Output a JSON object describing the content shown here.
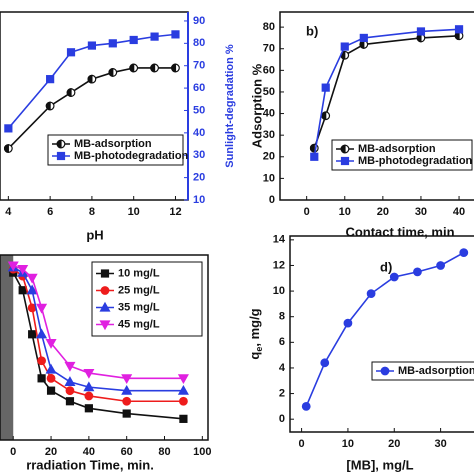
{
  "chart_data": [
    {
      "type": "line",
      "x_label": "pH",
      "y2_label": "Sunlight-degradation %",
      "x": [
        4,
        6,
        7,
        8,
        9,
        10,
        11,
        12
      ],
      "xlim": [
        3.6,
        12.6
      ],
      "xticks": [
        4,
        6,
        8,
        10,
        12
      ],
      "ylim": [
        10,
        94
      ],
      "y2lim": [
        10,
        94
      ],
      "y2ticks": [
        10,
        20,
        30,
        40,
        50,
        60,
        70,
        80,
        90
      ],
      "y2_color": "#2a3de0",
      "series": [
        {
          "name": "MB-adsorption",
          "color": "#111111",
          "marker": "half",
          "values": [
            33,
            52,
            58,
            64,
            67,
            69,
            69,
            69
          ]
        },
        {
          "name": "MB-photodegradation",
          "color": "#2a3de0",
          "marker": "square",
          "axis": "y2",
          "values": [
            42,
            64,
            76,
            79,
            80,
            81.5,
            83,
            84
          ]
        }
      ]
    },
    {
      "type": "line",
      "label": "b)",
      "x_label": "Contact time, min",
      "y_label": "Adsorption %",
      "x": [
        2,
        5,
        10,
        15,
        30,
        40
      ],
      "xlim": [
        -7,
        45.5
      ],
      "xticks": [
        0,
        10,
        20,
        30,
        40
      ],
      "ylim": [
        0,
        87
      ],
      "yticks": [
        0,
        10,
        20,
        30,
        40,
        50,
        60,
        70,
        80
      ],
      "series": [
        {
          "name": "MB-adsorption",
          "color": "#111111",
          "marker": "half",
          "values": [
            24,
            39,
            67,
            72,
            75,
            76
          ]
        },
        {
          "name": "MB-photodegradation",
          "color": "#2a3de0",
          "marker": "square",
          "values": [
            20,
            52,
            71,
            75,
            78,
            79
          ]
        }
      ]
    },
    {
      "type": "line",
      "x_label": "rradiation Time, min.",
      "dark_region": true,
      "x": [
        0,
        5,
        10,
        15,
        20,
        30,
        40,
        60,
        90
      ],
      "xlim": [
        -7,
        103
      ],
      "xticks": [
        0,
        20,
        40,
        60,
        80,
        100
      ],
      "ylim": [
        0,
        1.05
      ],
      "series": [
        {
          "name": "10 mg/L",
          "color": "#111111",
          "marker": "square",
          "values": [
            0.95,
            0.85,
            0.6,
            0.35,
            0.28,
            0.22,
            0.18,
            0.15,
            0.12
          ]
        },
        {
          "name": "25 mg/L",
          "color": "#ee1c1c",
          "marker": "circle",
          "values": [
            0.97,
            0.93,
            0.75,
            0.45,
            0.35,
            0.28,
            0.25,
            0.22,
            0.22
          ]
        },
        {
          "name": "35 mg/L",
          "color": "#2a3de0",
          "marker": "triup",
          "values": [
            0.98,
            0.95,
            0.85,
            0.6,
            0.4,
            0.33,
            0.3,
            0.28,
            0.28
          ]
        },
        {
          "name": "45 mg/L",
          "color": "#e020e0",
          "marker": "tridown",
          "values": [
            0.99,
            0.97,
            0.92,
            0.75,
            0.55,
            0.42,
            0.38,
            0.35,
            0.35
          ]
        }
      ]
    },
    {
      "type": "line",
      "label": "d)",
      "x_label": "[MB], mg/L",
      "y_label_parts": [
        "q",
        "e",
        ", mg/g"
      ],
      "x": [
        1,
        5,
        10,
        15,
        20,
        25,
        30,
        35
      ],
      "xlim": [
        -2.5,
        38.5
      ],
      "xticks": [
        0,
        10,
        20,
        30
      ],
      "ylim": [
        -1,
        14.3
      ],
      "yticks": [
        0,
        2,
        4,
        6,
        8,
        10,
        12,
        14
      ],
      "series": [
        {
          "name": "MB-adsorption",
          "color": "#2a3de0",
          "marker": "circle",
          "values": [
            1,
            4.4,
            7.5,
            9.8,
            11.1,
            11.5,
            12,
            13
          ]
        }
      ]
    }
  ]
}
